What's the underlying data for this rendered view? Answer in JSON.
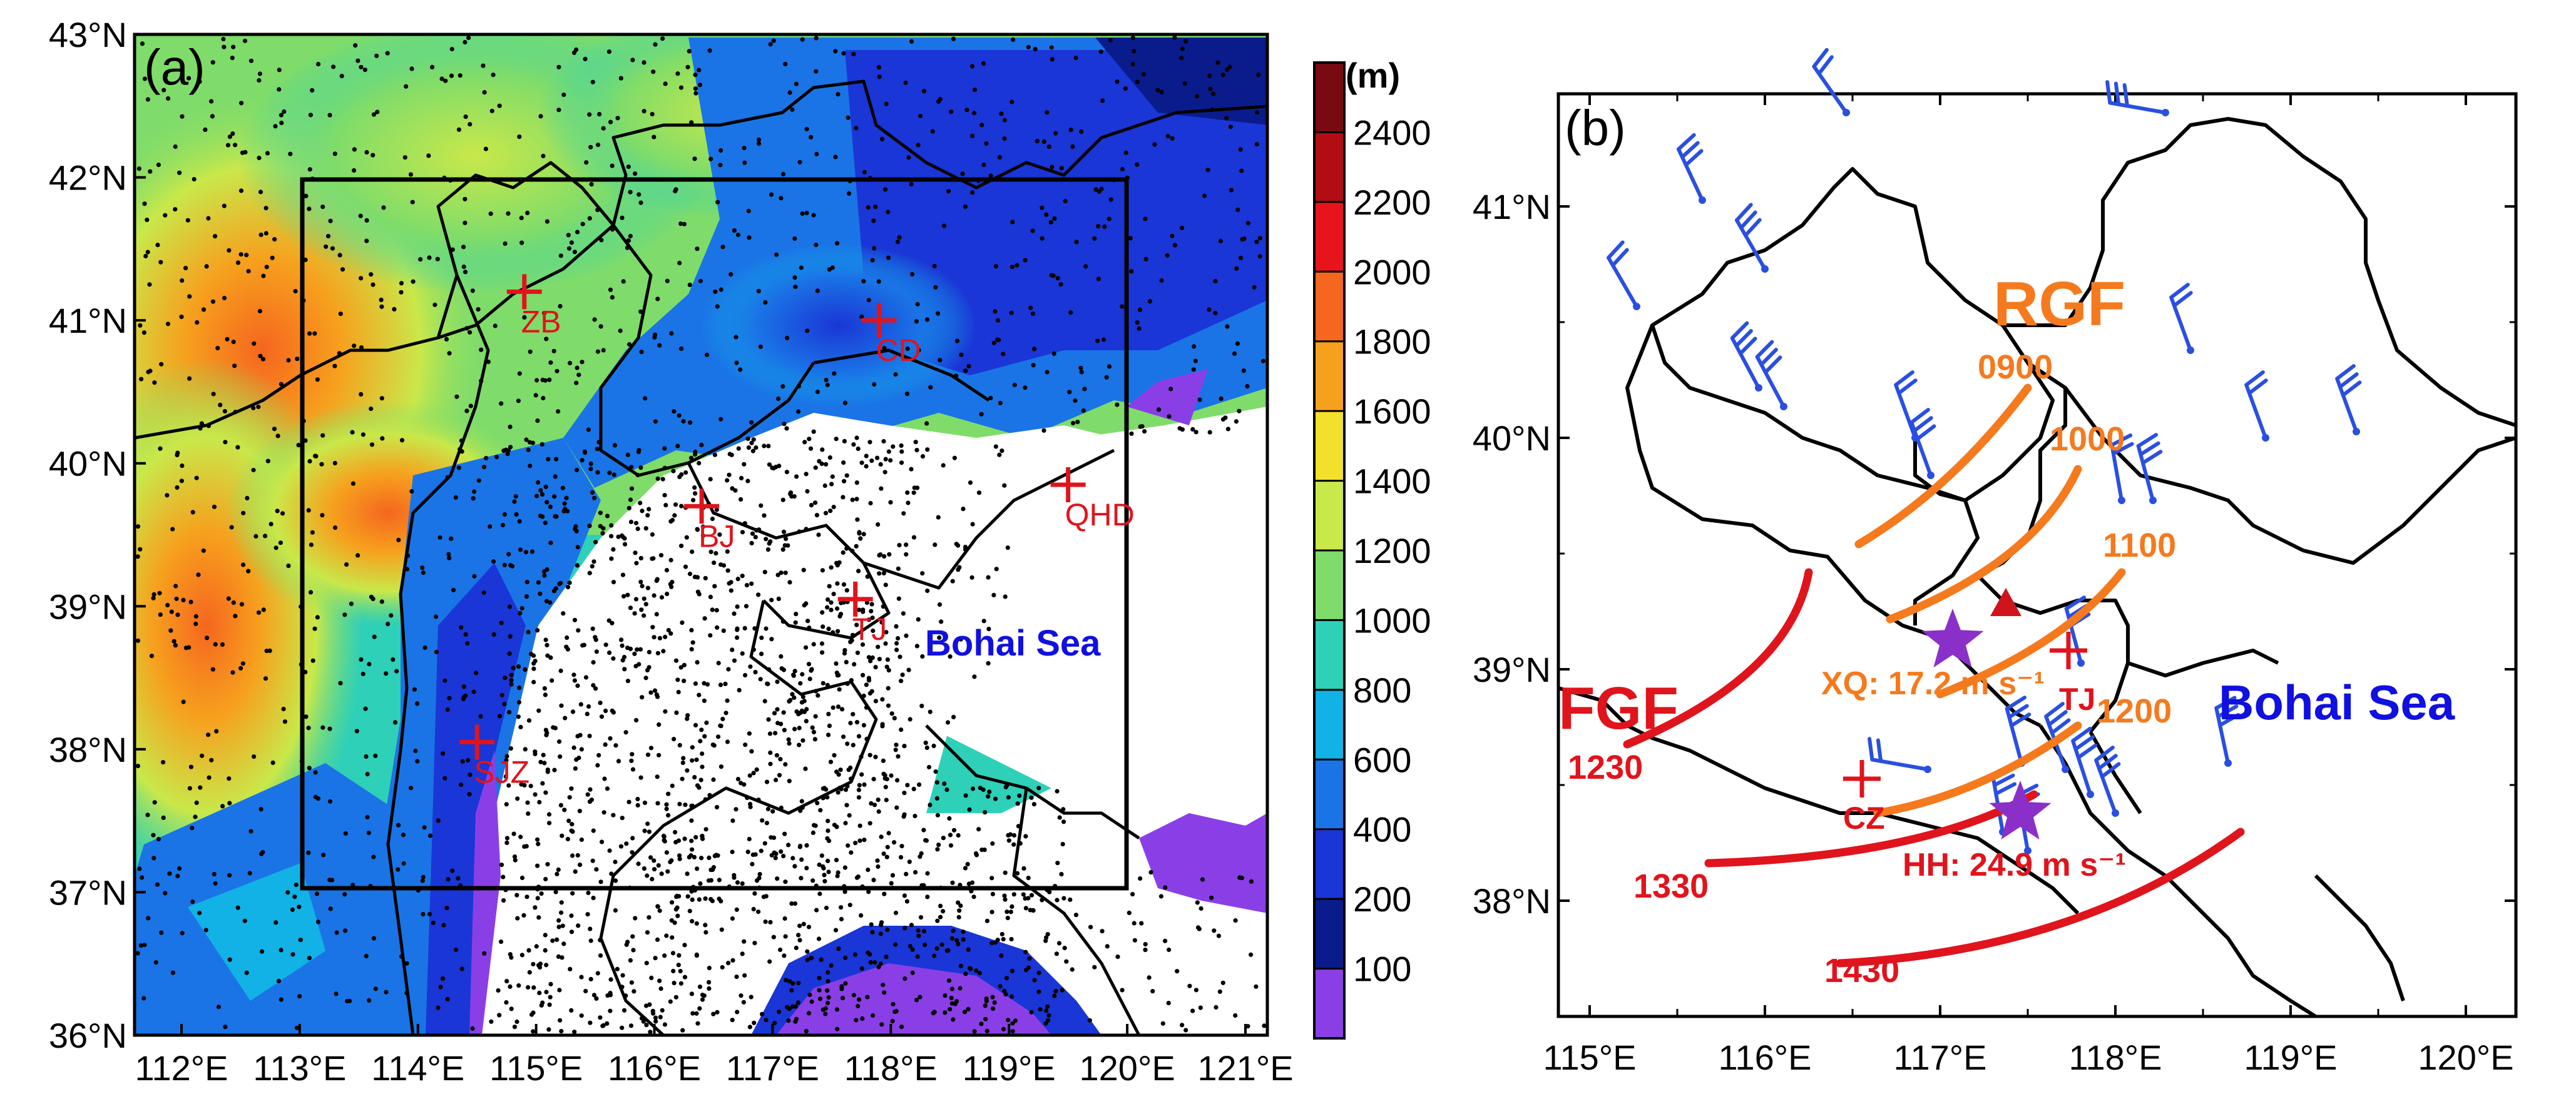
{
  "panel_a": {
    "label": "(a)",
    "lat_ticks": [
      "43°N",
      "42°N",
      "41°N",
      "40°N",
      "39°N",
      "38°N",
      "37°N",
      "36°N"
    ],
    "lon_ticks": [
      "112°E",
      "113°E",
      "114°E",
      "115°E",
      "116°E",
      "117°E",
      "118°E",
      "119°E",
      "120°E",
      "121°E"
    ],
    "stations": [
      {
        "name": "ZB",
        "lon": 114.9,
        "lat": 41.2
      },
      {
        "name": "CD",
        "lon": 117.9,
        "lat": 41.0
      },
      {
        "name": "BJ",
        "lon": 116.4,
        "lat": 39.7
      },
      {
        "name": "QHD",
        "lon": 119.5,
        "lat": 39.85
      },
      {
        "name": "TJ",
        "lon": 117.7,
        "lat": 39.05
      },
      {
        "name": "SJZ",
        "lon": 114.5,
        "lat": 38.05
      }
    ],
    "sea_label": "Bohai Sea",
    "domain_box": {
      "lon": [
        113.0,
        119.9
      ],
      "lat": [
        37.0,
        42.0
      ]
    }
  },
  "colorbar": {
    "unit": "(m)",
    "levels": [
      "2400",
      "2200",
      "2000",
      "1800",
      "1600",
      "1400",
      "1200",
      "1000",
      "800",
      "600",
      "400",
      "200",
      "100"
    ],
    "colors": [
      "#7a0a12",
      "#b20d14",
      "#e8141c",
      "#f5661f",
      "#f6a11e",
      "#f2e02a",
      "#c9e84a",
      "#7fdc6a",
      "#2fd0b8",
      "#12b2e6",
      "#1a74e6",
      "#1a36d6",
      "#0a1c8c",
      "#8a3fe6"
    ]
  },
  "panel_b": {
    "label": "(b)",
    "lat_ticks": [
      "41°N",
      "40°N",
      "39°N",
      "38°N"
    ],
    "lon_ticks": [
      "115°E",
      "116°E",
      "117°E",
      "118°E",
      "119°E",
      "120°E"
    ],
    "rgf_title": "RGF",
    "fgf_title": "FGF",
    "rgf_times": [
      "0900",
      "1000",
      "1100",
      "1200"
    ],
    "fgf_times": [
      "1230",
      "1330",
      "1430"
    ],
    "stations": [
      "TJ",
      "CZ"
    ],
    "xq_label": "XQ: 17.2 m s⁻¹",
    "hh_label": "HH: 24.9 m s⁻¹",
    "sea_label": "Bohai Sea",
    "colors": {
      "rgf": "#f57a1e",
      "fgf": "#e0141c",
      "star": "#8a2fc8",
      "barb": "#2a4fe0",
      "station": "#e0141c",
      "sea": "#1010e0"
    }
  }
}
